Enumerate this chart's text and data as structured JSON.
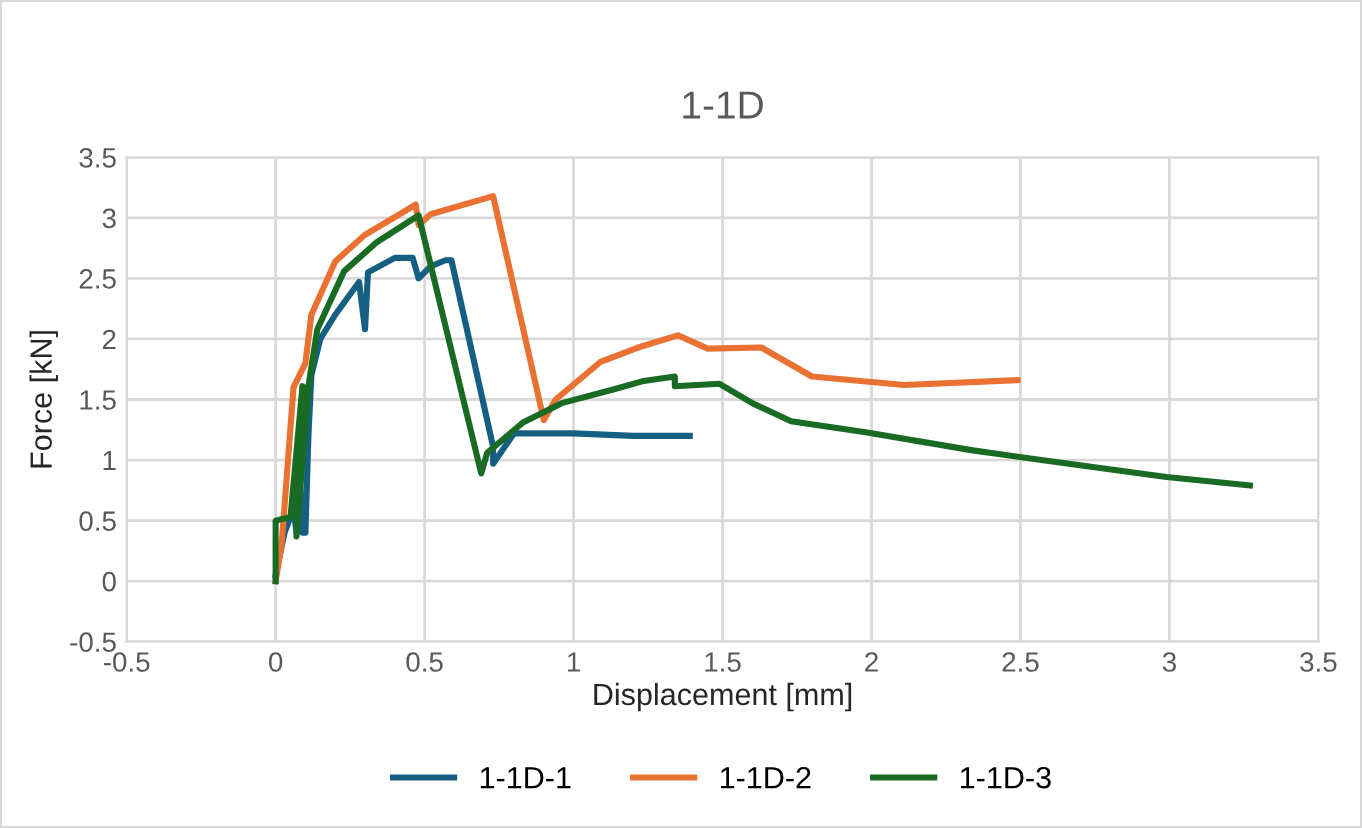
{
  "chart_data": {
    "type": "line",
    "title": "1-1D",
    "xlabel": "Displacement [mm]",
    "ylabel": "Force [kN]",
    "xlim": [
      -0.5,
      3.5
    ],
    "xticks": [
      -0.5,
      0,
      0.5,
      1,
      1.5,
      2,
      2.5,
      3,
      3.5
    ],
    "ylim": [
      -0.5,
      3.5
    ],
    "yticks": [
      -0.5,
      0,
      0.5,
      1,
      1.5,
      2,
      2.5,
      3,
      3.5
    ],
    "grid": true,
    "legend": "bottom",
    "marker": "none",
    "line_style": "solid",
    "series": [
      {
        "name": "1-1D-1",
        "color": "#156082",
        "x": [
          0,
          0.03,
          0.06,
          0.07,
          0.08,
          0.09,
          0.1,
          0.11,
          0.12,
          0.15,
          0.2,
          0.28,
          0.3,
          0.31,
          0.4,
          0.46,
          0.48,
          0.52,
          0.57,
          0.59,
          0.73,
          0.73,
          0.8,
          1.0,
          1.2,
          1.39
        ],
        "values": [
          0.05,
          0.4,
          0.6,
          0.4,
          0.9,
          0.4,
          0.4,
          1.2,
          1.7,
          2.0,
          2.2,
          2.47,
          2.08,
          2.55,
          2.67,
          2.67,
          2.5,
          2.6,
          2.65,
          2.65,
          1.11,
          0.97,
          1.22,
          1.22,
          1.2,
          1.2
        ]
      },
      {
        "name": "1-1D-2",
        "color": "#e97132",
        "x": [
          0,
          0.02,
          0.06,
          0.1,
          0.12,
          0.2,
          0.3,
          0.47,
          0.48,
          0.52,
          0.73,
          0.9,
          0.94,
          1.09,
          1.23,
          1.35,
          1.45,
          1.63,
          1.8,
          2.11,
          2.49
        ],
        "values": [
          0,
          0.3,
          1.6,
          1.8,
          2.2,
          2.64,
          2.86,
          3.11,
          2.94,
          3.03,
          3.18,
          1.33,
          1.5,
          1.81,
          1.94,
          2.03,
          1.92,
          1.93,
          1.69,
          1.62,
          1.66
        ]
      },
      {
        "name": "1-1D-3",
        "color": "#196b24",
        "x": [
          0,
          0,
          0.05,
          0.09,
          0.07,
          0.11,
          0.14,
          0.23,
          0.34,
          0.48,
          0.69,
          0.71,
          0.83,
          0.96,
          1.13,
          1.23,
          1.34,
          1.34,
          1.49,
          1.6,
          1.73,
          1.98,
          2.34,
          2.57,
          2.99,
          3.27
        ],
        "values": [
          0,
          0.5,
          0.53,
          1.61,
          0.37,
          1.61,
          2.08,
          2.56,
          2.8,
          3.02,
          0.89,
          1.06,
          1.31,
          1.47,
          1.58,
          1.65,
          1.69,
          1.61,
          1.63,
          1.47,
          1.32,
          1.23,
          1.08,
          1.0,
          0.86,
          0.79
        ]
      }
    ]
  }
}
